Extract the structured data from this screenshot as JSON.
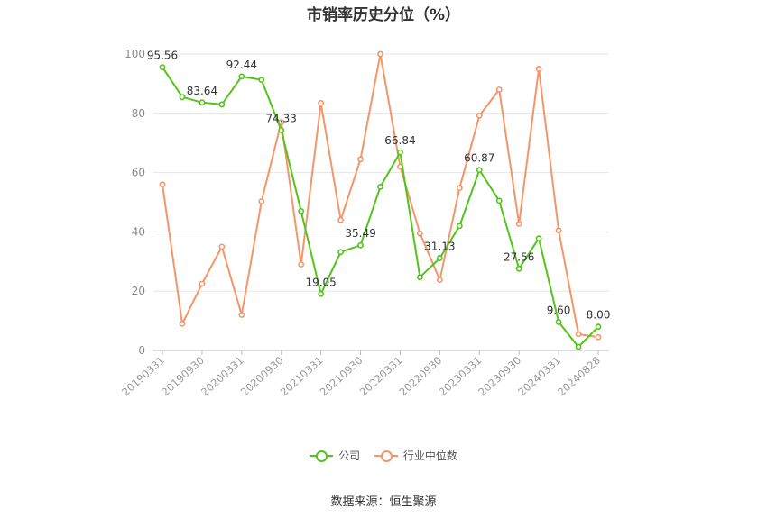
{
  "chart_data": {
    "type": "line",
    "title": "市销率历史分位（%）",
    "source": "数据来源：恒生聚源",
    "ylim": [
      0,
      100
    ],
    "y_ticks": [
      "0",
      "20",
      "40",
      "60",
      "80",
      "100"
    ],
    "x_tick_labels": [
      "20190331",
      "20190930",
      "20200331",
      "20200930",
      "20210331",
      "20210930",
      "20220331",
      "20220930",
      "20230331",
      "20230930",
      "20240331",
      "20240828"
    ],
    "series": [
      {
        "name": "公司",
        "color": "#52c41a",
        "values": [
          95.56,
          85.5,
          83.64,
          83.0,
          92.44,
          91.3,
          74.33,
          47.0,
          19.05,
          33.2,
          35.49,
          55.2,
          66.84,
          24.7,
          31.13,
          42.0,
          60.87,
          50.5,
          27.56,
          37.8,
          9.6,
          1.2,
          8.0
        ],
        "data_labels": [
          "95.56",
          "",
          "83.64",
          "",
          "92.44",
          "",
          "74.33",
          "",
          "19.05",
          "",
          "35.49",
          "",
          "66.84",
          "",
          "31.13",
          "",
          "60.87",
          "",
          "27.56",
          "",
          "9.60",
          "",
          "8.00"
        ]
      },
      {
        "name": "行业中位数",
        "color": "#f4956a",
        "values": [
          56.0,
          9.0,
          22.5,
          35.0,
          12.0,
          50.3,
          77.0,
          29.0,
          83.5,
          44.0,
          64.5,
          100.0,
          62.0,
          39.5,
          23.8,
          54.8,
          79.2,
          88.0,
          42.7,
          95.0,
          40.5,
          5.5,
          4.5
        ]
      }
    ],
    "grid": true,
    "legend_position": "bottom"
  }
}
